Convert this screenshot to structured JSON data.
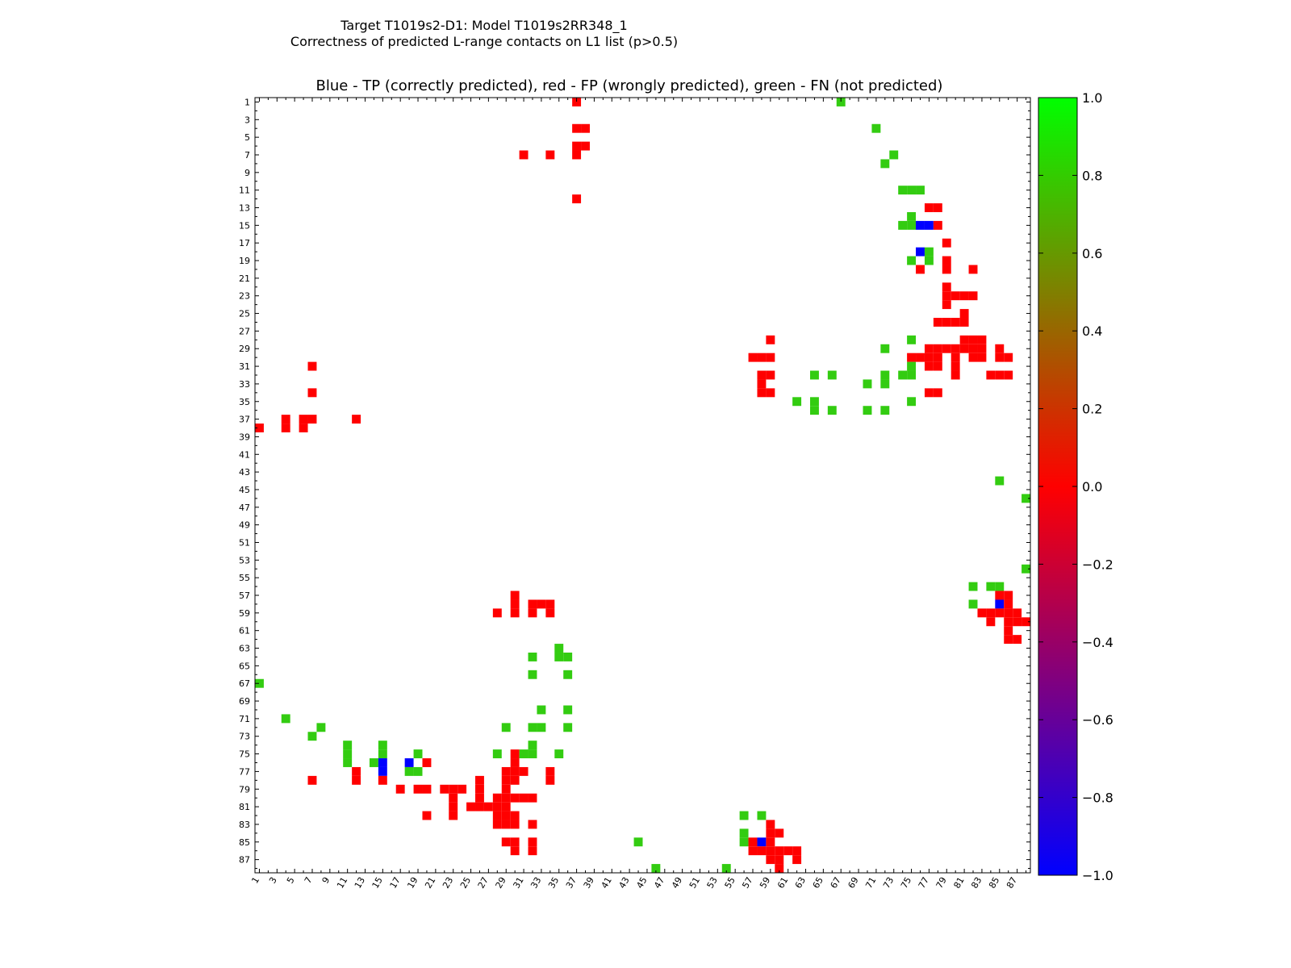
{
  "figure": {
    "title_line1": "Target T1019s2-D1: Model T1019s2RR348_1",
    "title_line2": "Correctness of predicted L-range contacts on L1 list (p>0.5)"
  },
  "chart_data": {
    "type": "heatmap",
    "title": "Blue - TP (correctly predicted), red - FP (wrongly predicted), green - FN (not predicted)",
    "n": 88,
    "xlim": [
      1,
      88
    ],
    "ylim": [
      1,
      88
    ],
    "y_inverted": true,
    "grid": false,
    "value_meaning": {
      "-1": "TP (blue)",
      "0": "FP (red)",
      "0.8": "FN (green)"
    },
    "colorbar": {
      "min": -1.0,
      "max": 1.0,
      "ticks": [
        "1.0",
        "0.8",
        "0.6",
        "0.4",
        "0.2",
        "0.0",
        "−0.2",
        "−0.4",
        "−0.6",
        "−0.8",
        "−1.0"
      ],
      "colormap": [
        "#0000ff",
        "#ff0000",
        "#00ff00"
      ]
    },
    "x_tick_labels": [
      "1",
      "3",
      "5",
      "7",
      "9",
      "11",
      "13",
      "15",
      "17",
      "19",
      "21",
      "23",
      "25",
      "27",
      "29",
      "31",
      "33",
      "35",
      "37",
      "39",
      "41",
      "43",
      "45",
      "47",
      "49",
      "51",
      "53",
      "55",
      "57",
      "59",
      "61",
      "63",
      "65",
      "67",
      "69",
      "71",
      "73",
      "75",
      "77",
      "79",
      "81",
      "83",
      "85",
      "87"
    ],
    "y_tick_labels": [
      "1",
      "3",
      "5",
      "7",
      "9",
      "11",
      "13",
      "15",
      "17",
      "19",
      "21",
      "23",
      "25",
      "27",
      "29",
      "31",
      "33",
      "35",
      "37",
      "39",
      "41",
      "43",
      "45",
      "47",
      "49",
      "51",
      "53",
      "55",
      "57",
      "59",
      "61",
      "63",
      "65",
      "67",
      "69",
      "71",
      "73",
      "75",
      "77",
      "79",
      "81",
      "83",
      "85",
      "87"
    ],
    "cells": [
      [
        37,
        1,
        0
      ],
      [
        37,
        4,
        0
      ],
      [
        38,
        4,
        0
      ],
      [
        37,
        6,
        0
      ],
      [
        38,
        6,
        0
      ],
      [
        37,
        7,
        0
      ],
      [
        31,
        7,
        0
      ],
      [
        34,
        7,
        0
      ],
      [
        37,
        12,
        0
      ],
      [
        67,
        1,
        0.8
      ],
      [
        71,
        4,
        0.8
      ],
      [
        73,
        7,
        0.8
      ],
      [
        72,
        8,
        0.8
      ],
      [
        74,
        11,
        0.8
      ],
      [
        75,
        11,
        0.8
      ],
      [
        76,
        11,
        0.8
      ],
      [
        77,
        13,
        0
      ],
      [
        78,
        13,
        0
      ],
      [
        75,
        14,
        0.8
      ],
      [
        74,
        15,
        0.8
      ],
      [
        75,
        15,
        0.8
      ],
      [
        76,
        15,
        -1
      ],
      [
        77,
        15,
        -1
      ],
      [
        78,
        15,
        0
      ],
      [
        79,
        17,
        0
      ],
      [
        76,
        18,
        -1
      ],
      [
        77,
        18,
        0.8
      ],
      [
        75,
        19,
        0.8
      ],
      [
        77,
        19,
        0.8
      ],
      [
        79,
        19,
        0
      ],
      [
        76,
        20,
        0
      ],
      [
        79,
        20,
        0
      ],
      [
        82,
        20,
        0
      ],
      [
        79,
        22,
        0
      ],
      [
        79,
        23,
        0
      ],
      [
        80,
        23,
        0
      ],
      [
        81,
        23,
        0
      ],
      [
        82,
        23,
        0
      ],
      [
        79,
        24,
        0
      ],
      [
        81,
        25,
        0
      ],
      [
        78,
        26,
        0
      ],
      [
        79,
        26,
        0
      ],
      [
        80,
        26,
        0
      ],
      [
        81,
        26,
        0
      ],
      [
        59,
        28,
        0
      ],
      [
        75,
        28,
        0.8
      ],
      [
        81,
        28,
        0
      ],
      [
        82,
        28,
        0
      ],
      [
        83,
        28,
        0
      ],
      [
        72,
        29,
        0.8
      ],
      [
        77,
        29,
        0
      ],
      [
        78,
        29,
        0
      ],
      [
        79,
        29,
        0
      ],
      [
        80,
        29,
        0
      ],
      [
        81,
        29,
        0
      ],
      [
        82,
        29,
        0
      ],
      [
        83,
        29,
        0
      ],
      [
        85,
        29,
        0
      ],
      [
        57,
        30,
        0
      ],
      [
        58,
        30,
        0
      ],
      [
        59,
        30,
        0
      ],
      [
        75,
        30,
        0
      ],
      [
        76,
        30,
        0
      ],
      [
        77,
        30,
        0
      ],
      [
        78,
        30,
        0
      ],
      [
        80,
        30,
        0
      ],
      [
        82,
        30,
        0
      ],
      [
        83,
        30,
        0
      ],
      [
        85,
        30,
        0
      ],
      [
        86,
        30,
        0
      ],
      [
        75,
        31,
        0.8
      ],
      [
        77,
        31,
        0
      ],
      [
        78,
        31,
        0
      ],
      [
        80,
        31,
        0
      ],
      [
        58,
        32,
        0
      ],
      [
        59,
        32,
        0
      ],
      [
        64,
        32,
        0.8
      ],
      [
        66,
        32,
        0.8
      ],
      [
        72,
        32,
        0.8
      ],
      [
        74,
        32,
        0.8
      ],
      [
        75,
        32,
        0.8
      ],
      [
        80,
        32,
        0
      ],
      [
        84,
        32,
        0
      ],
      [
        85,
        32,
        0
      ],
      [
        86,
        32,
        0
      ],
      [
        58,
        33,
        0
      ],
      [
        70,
        33,
        0.8
      ],
      [
        72,
        33,
        0.8
      ],
      [
        58,
        34,
        0
      ],
      [
        59,
        34,
        0
      ],
      [
        77,
        34,
        0
      ],
      [
        78,
        34,
        0
      ],
      [
        62,
        35,
        0.8
      ],
      [
        64,
        35,
        0.8
      ],
      [
        75,
        35,
        0.8
      ],
      [
        64,
        36,
        0.8
      ],
      [
        66,
        36,
        0.8
      ],
      [
        70,
        36,
        0.8
      ],
      [
        72,
        36,
        0.8
      ],
      [
        7,
        31,
        0
      ],
      [
        7,
        34,
        0
      ],
      [
        4,
        37,
        0
      ],
      [
        6,
        37,
        0
      ],
      [
        7,
        37,
        0
      ],
      [
        12,
        37,
        0
      ],
      [
        1,
        38,
        0
      ],
      [
        4,
        38,
        0
      ],
      [
        6,
        38,
        0
      ],
      [
        85,
        44,
        0.8
      ],
      [
        88,
        46,
        0.8
      ],
      [
        88,
        54,
        0.8
      ],
      [
        82,
        56,
        0.8
      ],
      [
        84,
        56,
        0.8
      ],
      [
        85,
        56,
        0.8
      ],
      [
        85,
        57,
        0
      ],
      [
        86,
        57,
        0
      ],
      [
        82,
        58,
        0.8
      ],
      [
        85,
        58,
        -1
      ],
      [
        86,
        58,
        0
      ],
      [
        83,
        59,
        0
      ],
      [
        84,
        59,
        0
      ],
      [
        85,
        59,
        0
      ],
      [
        86,
        59,
        0
      ],
      [
        87,
        59,
        0
      ],
      [
        84,
        60,
        0
      ],
      [
        86,
        60,
        0
      ],
      [
        87,
        60,
        0
      ],
      [
        88,
        60,
        0
      ],
      [
        86,
        61,
        0
      ],
      [
        86,
        62,
        0
      ],
      [
        87,
        62,
        0
      ],
      [
        30,
        57,
        0
      ],
      [
        30,
        58,
        0
      ],
      [
        32,
        58,
        0
      ],
      [
        33,
        58,
        0
      ],
      [
        34,
        58,
        0
      ],
      [
        28,
        59,
        0
      ],
      [
        30,
        59,
        0
      ],
      [
        32,
        59,
        0
      ],
      [
        34,
        59,
        0
      ],
      [
        35,
        63,
        0.8
      ],
      [
        32,
        64,
        0.8
      ],
      [
        35,
        64,
        0.8
      ],
      [
        36,
        64,
        0.8
      ],
      [
        32,
        66,
        0.8
      ],
      [
        36,
        66,
        0.8
      ],
      [
        1,
        67,
        0.8
      ],
      [
        33,
        70,
        0.8
      ],
      [
        36,
        70,
        0.8
      ],
      [
        4,
        71,
        0.8
      ],
      [
        8,
        72,
        0.8
      ],
      [
        29,
        72,
        0.8
      ],
      [
        32,
        72,
        0.8
      ],
      [
        33,
        72,
        0.8
      ],
      [
        36,
        72,
        0.8
      ],
      [
        7,
        73,
        0.8
      ],
      [
        32,
        74,
        0.8
      ],
      [
        11,
        74,
        0.8
      ],
      [
        15,
        74,
        0.8
      ],
      [
        11,
        75,
        0.8
      ],
      [
        15,
        75,
        0.8
      ],
      [
        19,
        75,
        0.8
      ],
      [
        28,
        75,
        0.8
      ],
      [
        30,
        75,
        0
      ],
      [
        31,
        75,
        0.8
      ],
      [
        32,
        75,
        0.8
      ],
      [
        35,
        75,
        0.8
      ],
      [
        11,
        76,
        0.8
      ],
      [
        14,
        76,
        0.8
      ],
      [
        15,
        76,
        -1
      ],
      [
        18,
        76,
        -1
      ],
      [
        20,
        76,
        0
      ],
      [
        30,
        76,
        0
      ],
      [
        15,
        77,
        -1
      ],
      [
        18,
        77,
        0.8
      ],
      [
        19,
        77,
        0.8
      ],
      [
        12,
        77,
        0
      ],
      [
        29,
        77,
        0
      ],
      [
        30,
        77,
        0
      ],
      [
        31,
        77,
        0
      ],
      [
        34,
        77,
        0
      ],
      [
        7,
        78,
        0
      ],
      [
        12,
        78,
        0
      ],
      [
        15,
        78,
        0
      ],
      [
        26,
        78,
        0
      ],
      [
        29,
        78,
        0
      ],
      [
        30,
        78,
        0
      ],
      [
        34,
        78,
        0
      ],
      [
        17,
        79,
        0
      ],
      [
        19,
        79,
        0
      ],
      [
        20,
        79,
        0
      ],
      [
        22,
        79,
        0
      ],
      [
        23,
        79,
        0
      ],
      [
        24,
        79,
        0
      ],
      [
        26,
        79,
        0
      ],
      [
        29,
        79,
        0
      ],
      [
        23,
        80,
        0
      ],
      [
        26,
        80,
        0
      ],
      [
        28,
        80,
        0
      ],
      [
        29,
        80,
        0
      ],
      [
        30,
        80,
        0
      ],
      [
        31,
        80,
        0
      ],
      [
        32,
        80,
        0
      ],
      [
        23,
        81,
        0
      ],
      [
        25,
        81,
        0
      ],
      [
        26,
        81,
        0
      ],
      [
        27,
        81,
        0
      ],
      [
        28,
        81,
        0
      ],
      [
        29,
        81,
        0
      ],
      [
        20,
        82,
        0
      ],
      [
        23,
        82,
        0
      ],
      [
        28,
        82,
        0
      ],
      [
        29,
        82,
        0
      ],
      [
        30,
        82,
        0
      ],
      [
        28,
        83,
        0
      ],
      [
        29,
        83,
        0
      ],
      [
        30,
        83,
        0
      ],
      [
        32,
        83,
        0
      ],
      [
        56,
        82,
        0.8
      ],
      [
        58,
        82,
        0.8
      ],
      [
        59,
        83,
        0
      ],
      [
        56,
        84,
        0.8
      ],
      [
        59,
        84,
        0
      ],
      [
        60,
        84,
        0
      ],
      [
        29,
        85,
        0
      ],
      [
        30,
        85,
        0
      ],
      [
        32,
        85,
        0
      ],
      [
        44,
        85,
        0.8
      ],
      [
        56,
        85,
        0.8
      ],
      [
        57,
        85,
        0
      ],
      [
        58,
        85,
        -1
      ],
      [
        59,
        85,
        0
      ],
      [
        30,
        86,
        0
      ],
      [
        32,
        86,
        0
      ],
      [
        57,
        86,
        0
      ],
      [
        58,
        86,
        0
      ],
      [
        59,
        86,
        0
      ],
      [
        60,
        86,
        0
      ],
      [
        61,
        86,
        0
      ],
      [
        62,
        86,
        0
      ],
      [
        59,
        87,
        0
      ],
      [
        60,
        87,
        0
      ],
      [
        62,
        87,
        0
      ],
      [
        60,
        88,
        0
      ],
      [
        46,
        88,
        0.8
      ],
      [
        54,
        88,
        0.8
      ]
    ]
  }
}
